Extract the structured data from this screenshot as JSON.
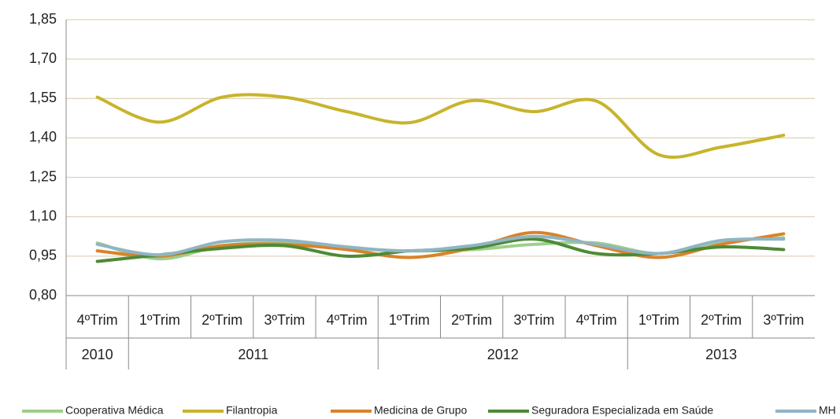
{
  "chart_data": {
    "type": "line",
    "categories": [
      "4ºTrim",
      "1ºTrim",
      "2ºTrim",
      "3ºTrim",
      "4ºTrim",
      "1ºTrim",
      "2ºTrim",
      "3ºTrim",
      "4ºTrim",
      "1ºTrim",
      "2ºTrim",
      "3ºTrim"
    ],
    "groups": [
      {
        "label": "2010",
        "count": 1
      },
      {
        "label": "2011",
        "count": 4
      },
      {
        "label": "2012",
        "count": 4
      },
      {
        "label": "2013",
        "count": 3
      }
    ],
    "series": [
      {
        "name": "Cooperativa Médica",
        "color": "#9dcf8b",
        "values": [
          1.0,
          0.94,
          0.99,
          1.0,
          0.98,
          0.97,
          0.975,
          0.995,
          1.0,
          0.96,
          1.005,
          1.02
        ]
      },
      {
        "name": "Filantropia",
        "color": "#c8b42c",
        "values": [
          1.555,
          1.46,
          1.555,
          1.555,
          1.5,
          1.458,
          1.542,
          1.5,
          1.54,
          1.336,
          1.365,
          1.41
        ]
      },
      {
        "name": "Medicina de Grupo",
        "color": "#d9822b",
        "values": [
          0.97,
          0.95,
          0.99,
          0.995,
          0.975,
          0.945,
          0.98,
          1.04,
          0.99,
          0.945,
          0.995,
          1.035
        ]
      },
      {
        "name": "Seguradora Especializada em Saúde",
        "color": "#4e8a36",
        "values": [
          0.93,
          0.955,
          0.98,
          0.99,
          0.95,
          0.97,
          0.98,
          1.015,
          0.96,
          0.96,
          0.985,
          0.975
        ]
      },
      {
        "name": "MH",
        "color": "#8fb5c4",
        "values": [
          0.995,
          0.955,
          1.005,
          1.01,
          0.985,
          0.97,
          0.99,
          1.025,
          0.995,
          0.96,
          1.01,
          1.015
        ]
      }
    ],
    "ylim": [
      0.8,
      1.85
    ],
    "yticks": [
      {
        "value": 0.8,
        "label": "0,80"
      },
      {
        "value": 0.95,
        "label": "0,95"
      },
      {
        "value": 1.1,
        "label": "1,10"
      },
      {
        "value": 1.25,
        "label": "1,25"
      },
      {
        "value": 1.4,
        "label": "1,40"
      },
      {
        "value": 1.55,
        "label": "1,55"
      },
      {
        "value": 1.7,
        "label": "1,70"
      },
      {
        "value": 1.85,
        "label": "1,85"
      }
    ],
    "grid": true,
    "legend": "bottom"
  }
}
